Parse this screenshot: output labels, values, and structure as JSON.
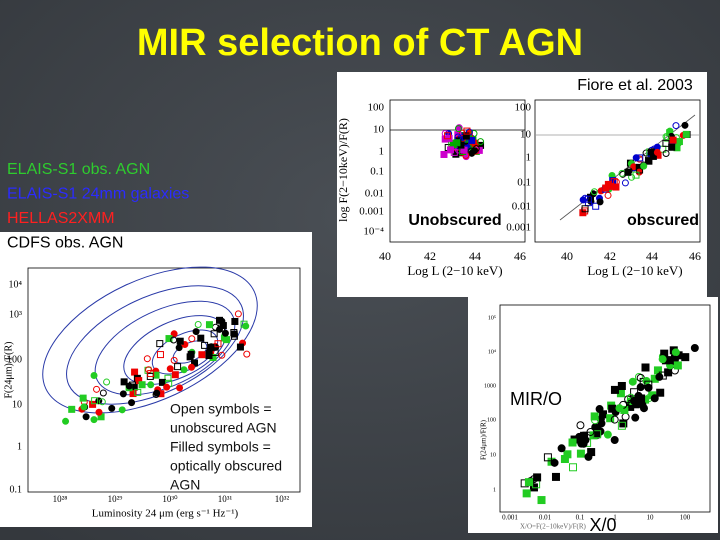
{
  "title": "MIR selection of CT AGN",
  "citation": "Fiore et al. 2003",
  "legend": [
    {
      "label": "ELAIS-S1 obs.  AGN",
      "color": "#2ecc2e"
    },
    {
      "label": "ELAIS-S1 24mm galaxies",
      "color": "#2b2bff"
    },
    {
      "label": "HELLAS2XMM",
      "color": "#ff2020"
    },
    {
      "label": "CDFS obs. AGN",
      "color": "#000000"
    }
  ],
  "top_panel": {
    "y_label": "log F(2−10keV)/F(R)",
    "x_label": "Log L (2−10 keV)",
    "left_yticks": [
      "100",
      "10",
      "1",
      "0.1",
      "0.01",
      "0.001",
      "10⁻⁴"
    ],
    "right_yticks": [
      "100",
      "10",
      "1",
      "0.1",
      "0.01",
      "0.001"
    ],
    "xticks": [
      "40",
      "42",
      "44",
      "46"
    ],
    "left_label": "Unobscured",
    "right_label": "obscured"
  },
  "left_panel": {
    "y_label": "F(24μm)/F(R)",
    "x_label": "Luminosity 24 μm (erg s⁻¹ Hz⁻¹)",
    "yticks": [
      "10⁴",
      "10³",
      "100",
      "10",
      "1",
      "0.1"
    ],
    "xticks": [
      "10²⁸",
      "10²⁹",
      "10³⁰",
      "10³¹",
      "10³²"
    ],
    "note": [
      "Open symbols =",
      "unobscured AGN",
      "Filled symbols =",
      "optically obscured",
      "AGN"
    ]
  },
  "bottom_panel": {
    "y_label": "F(24μm)/F(R)",
    "x_label": "X/O=F(2−10keV)/F(R)",
    "yticks": [
      "10⁵",
      "10⁴",
      "1000",
      "100",
      "10",
      "1"
    ],
    "xticks": [
      "0.001",
      "0.01",
      "0.1",
      "1",
      "10",
      "100"
    ],
    "mir_label": "MIR/O",
    "x_label_big": "X/0"
  }
}
